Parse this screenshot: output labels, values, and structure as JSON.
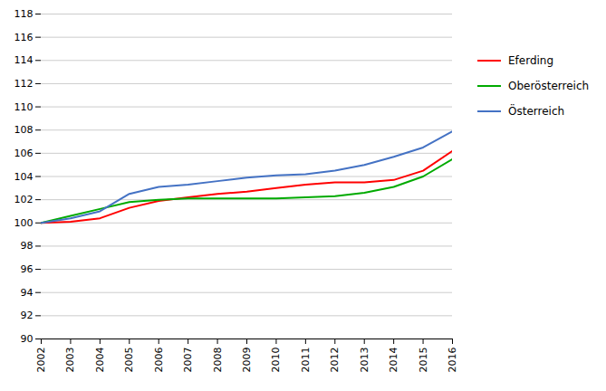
{
  "chart_data": {
    "type": "line",
    "x": [
      2002,
      2003,
      2004,
      2005,
      2006,
      2007,
      2008,
      2009,
      2010,
      2011,
      2012,
      2013,
      2014,
      2015,
      2016
    ],
    "series": [
      {
        "name": "Eferding",
        "color": "#ff0000",
        "values": [
          100.0,
          100.1,
          100.4,
          101.3,
          101.9,
          102.2,
          102.5,
          102.7,
          103.0,
          103.3,
          103.5,
          103.5,
          103.7,
          104.5,
          106.2
        ]
      },
      {
        "name": "Oberösterreich",
        "color": "#00aa00",
        "values": [
          100.0,
          100.6,
          101.2,
          101.8,
          102.0,
          102.1,
          102.1,
          102.1,
          102.1,
          102.2,
          102.3,
          102.6,
          103.1,
          104.0,
          105.5
        ]
      },
      {
        "name": "Österreich",
        "color": "#4472c4",
        "values": [
          100.0,
          100.4,
          101.0,
          102.5,
          103.1,
          103.3,
          103.6,
          103.9,
          104.1,
          104.2,
          104.5,
          105.0,
          105.7,
          106.5,
          107.9
        ]
      }
    ],
    "xlim": [
      2002,
      2016
    ],
    "xticks": [
      2002,
      2003,
      2004,
      2005,
      2006,
      2007,
      2008,
      2009,
      2010,
      2011,
      2012,
      2013,
      2014,
      2015,
      2016
    ],
    "ylim": [
      90,
      118
    ],
    "yticks": [
      90,
      92,
      94,
      96,
      98,
      100,
      102,
      104,
      106,
      108,
      110,
      112,
      114,
      116,
      118
    ],
    "grid": "y",
    "legend": "right"
  }
}
